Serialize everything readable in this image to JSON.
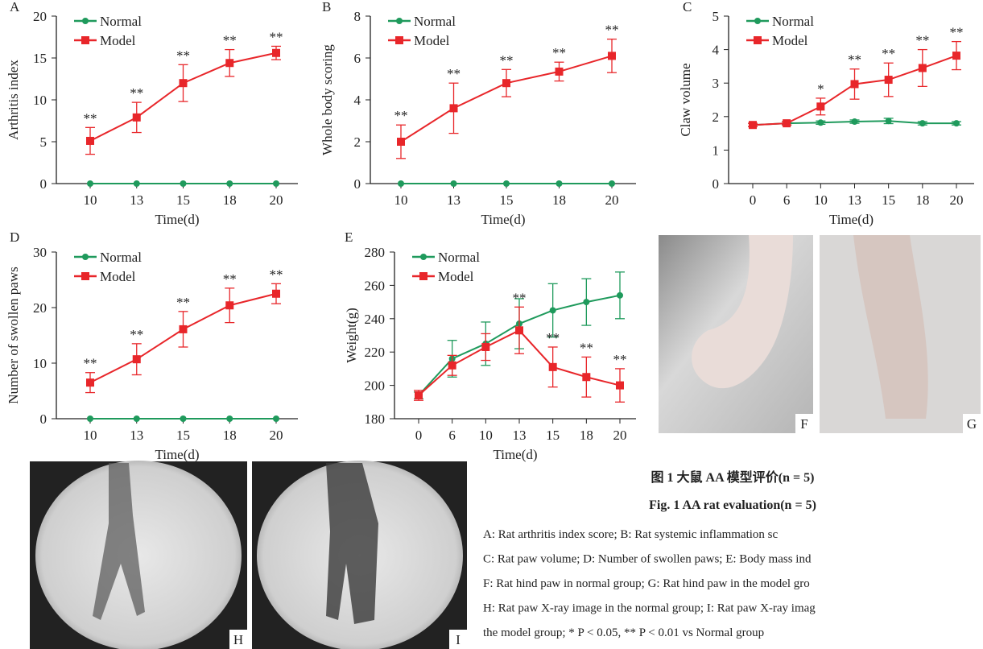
{
  "chart_data": [
    {
      "type": "line",
      "label": "A",
      "ylabel": "Arthritis index",
      "xlabel": "Time(d)",
      "categories": [
        "10",
        "13",
        "15",
        "18",
        "20"
      ],
      "ylim": [
        0,
        20
      ],
      "yticks": [
        0,
        5,
        10,
        15,
        20
      ],
      "series": [
        {
          "name": "Normal",
          "color": "#1f9a5c",
          "values": [
            0,
            0,
            0,
            0,
            0
          ],
          "errors": [
            0,
            0,
            0,
            0,
            0
          ]
        },
        {
          "name": "Model",
          "color": "#e8262a",
          "values": [
            5.1,
            7.9,
            12.0,
            14.4,
            15.6
          ],
          "errors": [
            1.6,
            1.8,
            2.2,
            1.6,
            0.8
          ]
        }
      ],
      "annotations": [
        "**",
        "**",
        "**",
        "**",
        "**"
      ]
    },
    {
      "type": "line",
      "label": "B",
      "ylabel": "Whole body scoring",
      "xlabel": "Time(d)",
      "categories": [
        "10",
        "13",
        "15",
        "18",
        "20"
      ],
      "ylim": [
        0,
        8
      ],
      "yticks": [
        0,
        2,
        4,
        6,
        8
      ],
      "series": [
        {
          "name": "Normal",
          "color": "#1f9a5c",
          "values": [
            0,
            0,
            0,
            0,
            0
          ],
          "errors": [
            0,
            0,
            0,
            0,
            0
          ]
        },
        {
          "name": "Model",
          "color": "#e8262a",
          "values": [
            2.0,
            3.6,
            4.8,
            5.35,
            6.1
          ],
          "errors": [
            0.8,
            1.2,
            0.65,
            0.45,
            0.8
          ]
        }
      ],
      "annotations": [
        "**",
        "**",
        "**",
        "**",
        "**"
      ]
    },
    {
      "type": "line",
      "label": "C",
      "ylabel": "Claw volume",
      "xlabel": "Time(d)",
      "categories": [
        "0",
        "6",
        "10",
        "13",
        "15",
        "18",
        "20"
      ],
      "ylim": [
        0,
        5
      ],
      "yticks": [
        0,
        1,
        2,
        3,
        4,
        5
      ],
      "series": [
        {
          "name": "Normal",
          "color": "#1f9a5c",
          "values": [
            1.75,
            1.8,
            1.82,
            1.85,
            1.87,
            1.8,
            1.8
          ],
          "errors": [
            0.05,
            0.05,
            0.05,
            0.05,
            0.08,
            0.05,
            0.05
          ]
        },
        {
          "name": "Model",
          "color": "#e8262a",
          "values": [
            1.75,
            1.8,
            2.3,
            2.97,
            3.1,
            3.45,
            3.82
          ],
          "errors": [
            0.05,
            0.05,
            0.25,
            0.45,
            0.5,
            0.55,
            0.42
          ]
        }
      ],
      "annotations": [
        null,
        null,
        "*",
        "**",
        "**",
        "**",
        "**"
      ]
    },
    {
      "type": "line",
      "label": "D",
      "ylabel": "Number of swollen paws",
      "xlabel": "Time(d)",
      "categories": [
        "10",
        "13",
        "15",
        "18",
        "20"
      ],
      "ylim": [
        0,
        30
      ],
      "yticks": [
        0,
        10,
        20,
        30
      ],
      "series": [
        {
          "name": "Normal",
          "color": "#1f9a5c",
          "values": [
            0,
            0,
            0,
            0,
            0
          ],
          "errors": [
            0,
            0,
            0,
            0,
            0
          ]
        },
        {
          "name": "Model",
          "color": "#e8262a",
          "values": [
            6.5,
            10.7,
            16.1,
            20.4,
            22.5
          ],
          "errors": [
            1.8,
            2.8,
            3.2,
            3.1,
            1.8
          ]
        }
      ],
      "annotations": [
        "**",
        "**",
        "**",
        "**",
        "**"
      ]
    },
    {
      "type": "line",
      "label": "E",
      "ylabel": "Weight(g)",
      "xlabel": "Time(d)",
      "categories": [
        "0",
        "6",
        "10",
        "13",
        "15",
        "18",
        "20"
      ],
      "ylim": [
        180,
        280
      ],
      "yticks": [
        180,
        200,
        220,
        240,
        260,
        280
      ],
      "series": [
        {
          "name": "Normal",
          "color": "#1f9a5c",
          "values": [
            194,
            216,
            225,
            237,
            245,
            250,
            254
          ],
          "errors": [
            2,
            11,
            13,
            15,
            16,
            14,
            14
          ]
        },
        {
          "name": "Model",
          "color": "#e8262a",
          "values": [
            194,
            212,
            223,
            233,
            211,
            205,
            200
          ],
          "errors": [
            3,
            6,
            8,
            14,
            12,
            12,
            10
          ]
        }
      ],
      "annotations": [
        null,
        null,
        null,
        "**",
        "**",
        "**",
        "**"
      ]
    }
  ],
  "photos": [
    "F",
    "G",
    "H",
    "I"
  ],
  "caption": {
    "zh": "图 1 大鼠 AA 模型评价(n = 5)",
    "en": "Fig. 1   AA rat evaluation(n = 5)",
    "lines": [
      "A: Rat arthritis index score; B: Rat systemic inflammation sc",
      "C: Rat paw volume; D: Number of swollen paws; E: Body mass ind",
      "F: Rat hind paw in normal group; G: Rat hind paw in the model gro",
      "H: Rat paw X-ray image in the normal group; I: Rat paw X-ray imag",
      "the model group; * P < 0.05, ** P < 0.01 vs Normal group"
    ]
  }
}
